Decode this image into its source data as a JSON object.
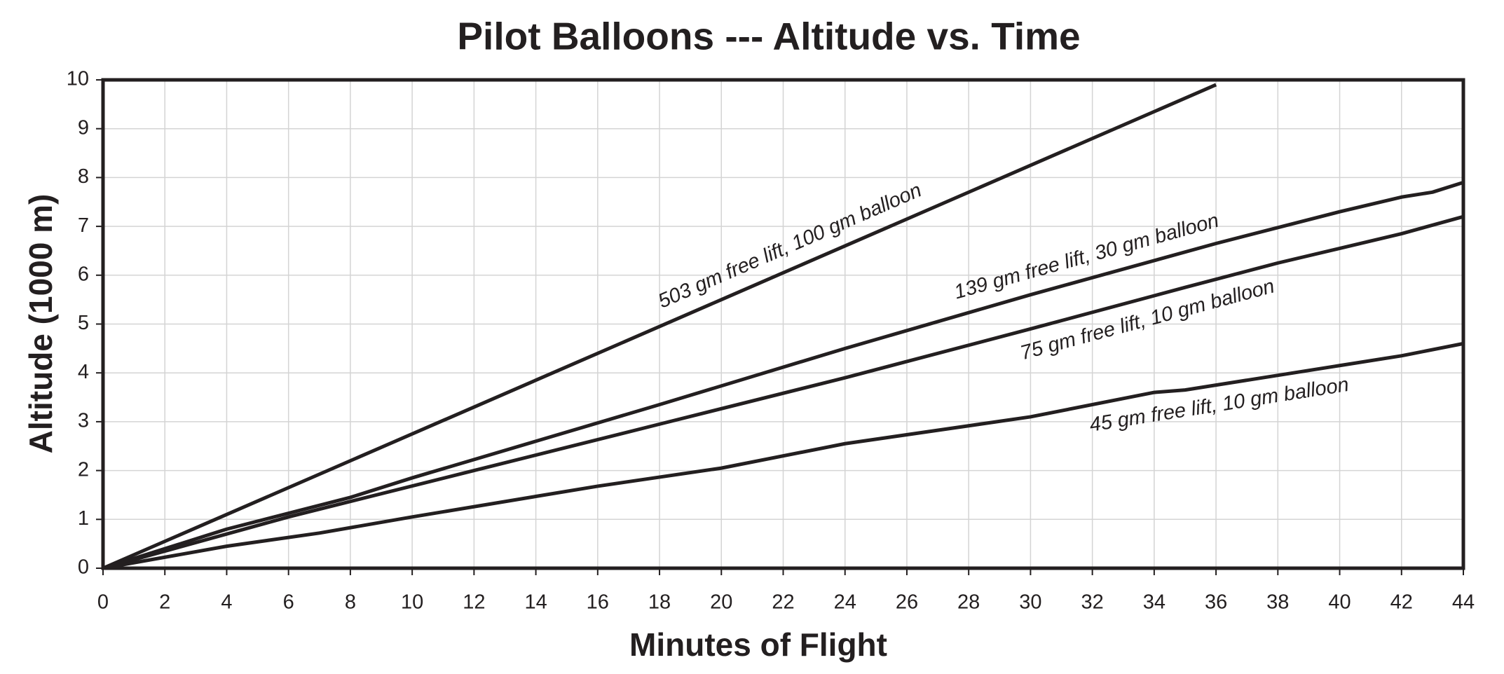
{
  "chart_data": {
    "type": "line",
    "title": "Pilot Balloons --- Altitude vs. Time",
    "x_label": "Minutes of Flight",
    "y_label": "Altitude (1000 m)",
    "xlim": [
      0,
      44
    ],
    "xticks": [
      0,
      2,
      4,
      6,
      8,
      10,
      12,
      14,
      16,
      18,
      20,
      22,
      24,
      26,
      28,
      30,
      32,
      34,
      36,
      38,
      40,
      42,
      44
    ],
    "ylim": [
      0,
      10
    ],
    "yticks": [
      0,
      1,
      2,
      3,
      4,
      5,
      6,
      7,
      8,
      9,
      10
    ],
    "grid": true,
    "series": [
      {
        "name": "503 gm free lift, 100 gm balloon",
        "color": "#231f20",
        "x": [
          0,
          20,
          36
        ],
        "values": [
          0,
          5.5,
          9.9
        ]
      },
      {
        "name": "139 gm free lift, 30 gm balloon",
        "color": "#231f20",
        "x": [
          0,
          4,
          8,
          10,
          14,
          18,
          24,
          30,
          36,
          40,
          42,
          43,
          44
        ],
        "values": [
          0,
          0.8,
          1.45,
          1.85,
          2.6,
          3.35,
          4.5,
          5.6,
          6.65,
          7.3,
          7.6,
          7.7,
          7.9
        ]
      },
      {
        "name": "75 gm free lift, 10 gm balloon",
        "color": "#231f20",
        "x": [
          0,
          6,
          12,
          18,
          24,
          30,
          35,
          38,
          42,
          44
        ],
        "values": [
          0,
          1.05,
          2.0,
          2.95,
          3.9,
          4.9,
          5.75,
          6.25,
          6.85,
          7.2
        ]
      },
      {
        "name": "45 gm free lift, 10 gm balloon",
        "color": "#231f20",
        "x": [
          0,
          4,
          7,
          10,
          16,
          20,
          24,
          30,
          34,
          35,
          36,
          40,
          42,
          44
        ],
        "values": [
          0,
          0.45,
          0.72,
          1.05,
          1.68,
          2.05,
          2.55,
          3.1,
          3.6,
          3.65,
          3.75,
          4.15,
          4.35,
          4.6
        ]
      }
    ]
  }
}
